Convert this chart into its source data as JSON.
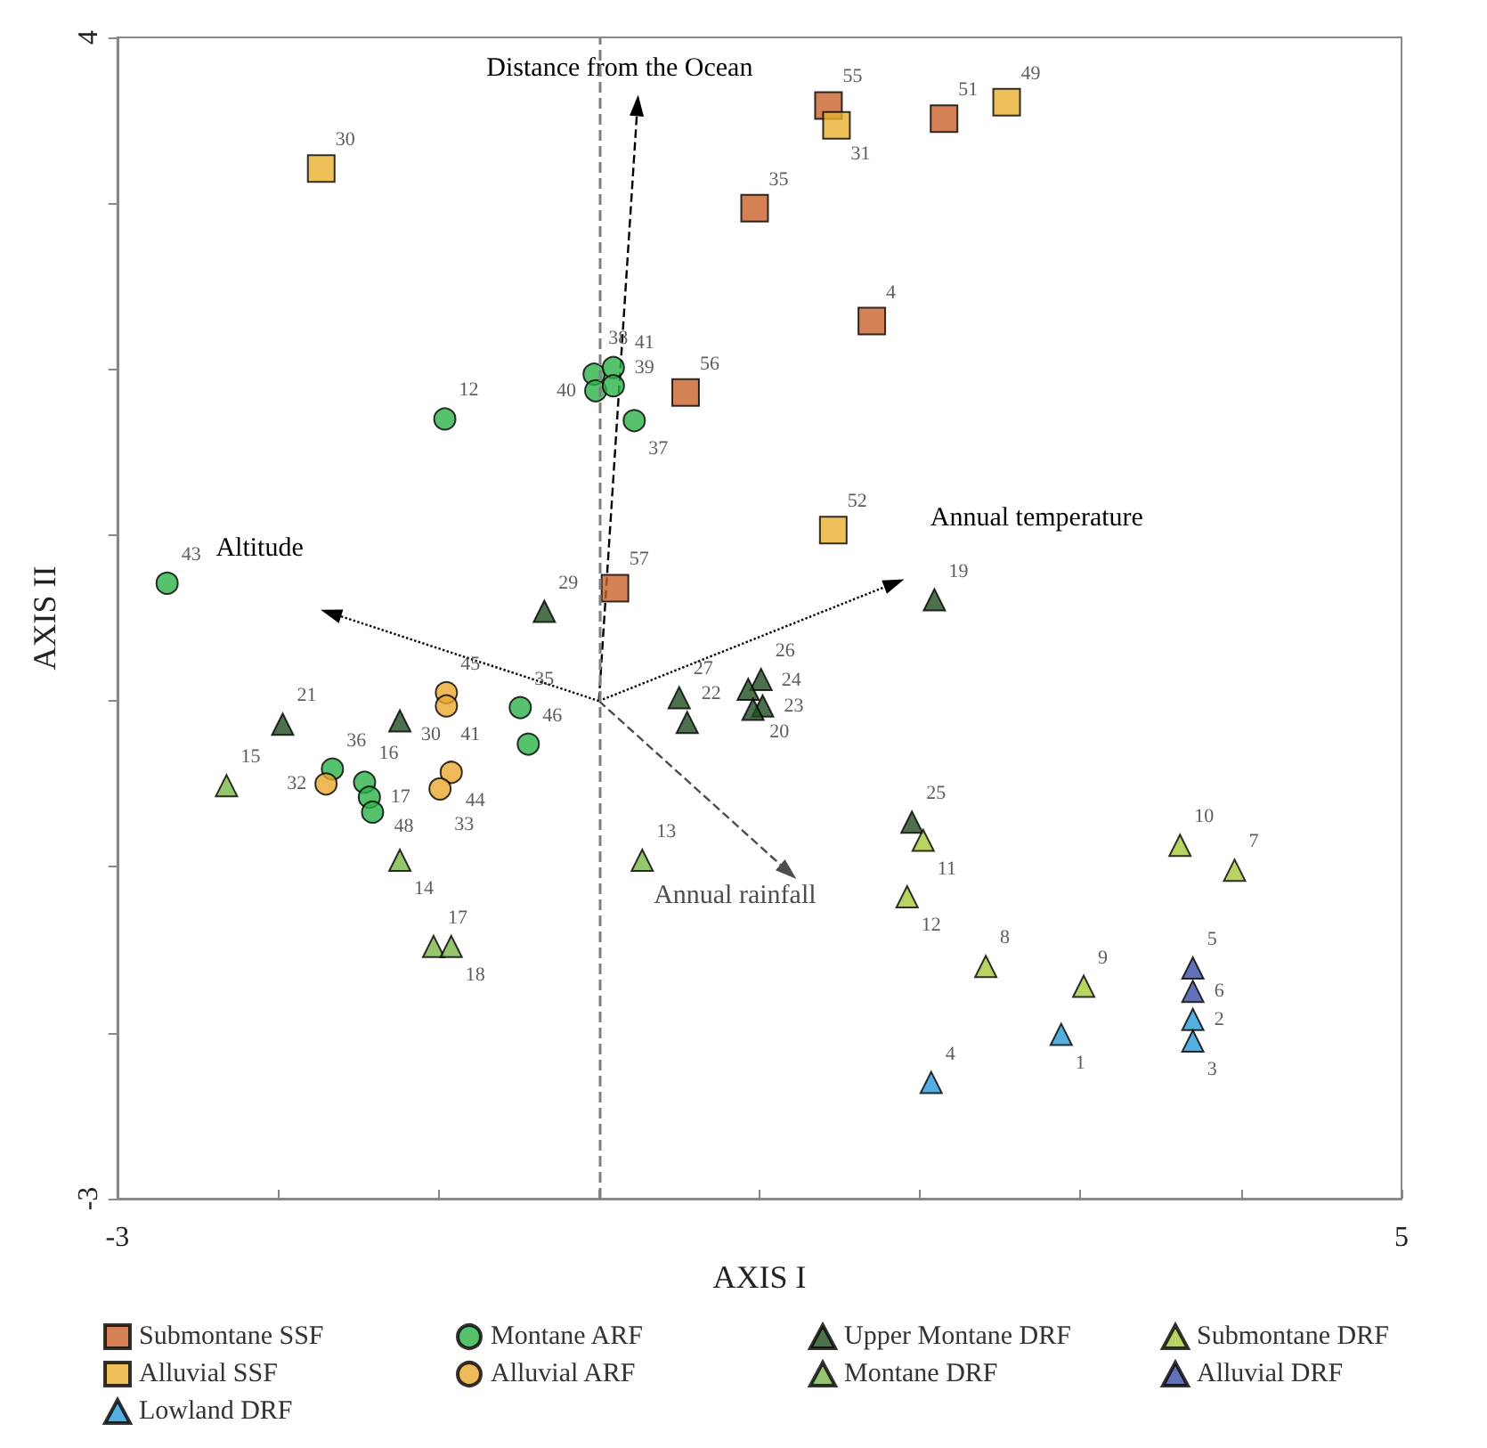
{
  "chart_data": {
    "type": "scatter",
    "xlabel": "AXIS I",
    "ylabel": "AXIS II",
    "xlim": [
      -3,
      5
    ],
    "ylim": [
      -3,
      4
    ],
    "xticks": [
      -3,
      {
        "value": -2,
        "label": null
      },
      {
        "value": -1,
        "label": null
      },
      {
        "value": 0,
        "label": null
      },
      {
        "value": 1,
        "label": null
      },
      {
        "value": 2,
        "label": null
      },
      {
        "value": 3,
        "label": null
      },
      {
        "value": 4,
        "label": null
      },
      5
    ],
    "yticks": [
      -3,
      {
        "value": -2,
        "label": null
      },
      {
        "value": -1,
        "label": null
      },
      {
        "value": 0,
        "label": null
      },
      {
        "value": 1,
        "label": null
      },
      {
        "value": 2,
        "label": null
      },
      {
        "value": 3,
        "label": null
      },
      4
    ],
    "legend": "bottom",
    "grid": false,
    "ref_lines": [
      {
        "axis": "x",
        "value": 0,
        "color": "#808080",
        "line_style": "dashed"
      }
    ],
    "series": [
      {
        "name": "Submontane SSF",
        "color": "#c8622a",
        "marker": "square",
        "x": [
          1.43,
          2.15,
          0.97,
          1.7,
          0.54,
          0.1
        ],
        "values": [
          3.59,
          3.51,
          2.97,
          2.29,
          1.86,
          0.68
        ]
      },
      {
        "name": "Montane ARF",
        "color": "#2db34a",
        "marker": "circle",
        "x": [
          -0.96,
          -2.69,
          -0.03,
          0.09,
          -0.02,
          0.09,
          0.22,
          -0.49,
          -0.44,
          -1.66,
          -1.46,
          -1.43,
          -1.41
        ],
        "values": [
          1.7,
          0.71,
          1.97,
          2.01,
          1.87,
          1.9,
          1.69,
          -0.04,
          -0.26,
          -0.41,
          -0.49,
          -0.58,
          -0.67
        ]
      },
      {
        "name": "Upper Montane DRF",
        "color": "#1f4d1f",
        "marker": "triangle",
        "x": [
          -0.34,
          -1.97,
          -1.24,
          0.5,
          0.55,
          1.01,
          0.93,
          1.02,
          0.96,
          2.09,
          1.95
        ],
        "values": [
          0.54,
          -0.14,
          -0.12,
          0.02,
          -0.13,
          0.13,
          0.07,
          -0.03,
          -0.05,
          0.61,
          -0.73
        ]
      },
      {
        "name": "Submontane DRF",
        "color": "#a8c83a",
        "marker": "triangle",
        "x": [
          2.02,
          3.62,
          3.96,
          1.92,
          2.41,
          3.02
        ],
        "values": [
          -0.84,
          -0.87,
          -1.02,
          -1.18,
          -1.6,
          -1.72
        ]
      },
      {
        "name": "Alluvial SSF",
        "color": "#e8b030",
        "marker": "square",
        "x": [
          -1.73,
          1.48,
          2.54,
          1.46
        ],
        "values": [
          3.21,
          3.47,
          3.61,
          1.03
        ]
      },
      {
        "name": "Alluvial ARF",
        "color": "#e8a830",
        "marker": "circle",
        "x": [
          -0.95,
          -0.95,
          -0.92,
          -0.99,
          -1.7
        ],
        "values": [
          0.05,
          -0.03,
          -0.43,
          -0.53,
          -0.5
        ]
      },
      {
        "name": "Montane DRF",
        "color": "#7ab648",
        "marker": "triangle",
        "x": [
          -2.32,
          -1.24,
          0.27,
          -1.03,
          -0.92
        ],
        "values": [
          -0.51,
          -0.96,
          -0.96,
          -1.48,
          -1.48
        ]
      },
      {
        "name": "Alluvial DRF",
        "color": "#3a4fa8",
        "marker": "triangle",
        "x": [
          3.7,
          3.7
        ],
        "values": [
          -1.61,
          -1.75
        ]
      },
      {
        "name": "Lowland DRF",
        "color": "#2a9ad8",
        "marker": "triangle",
        "x": [
          2.88,
          3.7,
          3.7,
          2.07
        ],
        "values": [
          -2.01,
          -1.92,
          -2.05,
          -2.3
        ]
      },
      {
        "name": "Distance from the Ocean",
        "type": "line",
        "color": "#000000",
        "line_style": "dashed",
        "marker": "triangle",
        "x": [
          0,
          0.24
        ],
        "values": [
          0,
          3.59
        ]
      },
      {
        "name": "Altitude",
        "type": "line",
        "color": "#000000",
        "line_style": "dotted",
        "marker": "triangle",
        "x": [
          0,
          -1.67
        ],
        "values": [
          0,
          0.53
        ]
      },
      {
        "name": "Annual temperature",
        "type": "line",
        "color": "#000000",
        "line_style": "dotted",
        "marker": "triangle",
        "x": [
          0,
          1.84
        ],
        "values": [
          0,
          0.71
        ]
      },
      {
        "name": "Annual rainfall",
        "type": "line",
        "color": "#4d4d4d",
        "line_style": "dashed",
        "marker": "triangle",
        "x": [
          0,
          1.18
        ],
        "values": [
          0,
          -1.03
        ]
      }
    ],
    "annotations": [
      {
        "text": "55",
        "x": 1.43,
        "y": 3.59
      },
      {
        "text": "51",
        "x": 2.15,
        "y": 3.51
      },
      {
        "text": "35",
        "x": 0.97,
        "y": 2.97
      },
      {
        "text": "4",
        "x": 1.7,
        "y": 2.29
      },
      {
        "text": "56",
        "x": 0.54,
        "y": 1.86
      },
      {
        "text": "57",
        "x": 0.1,
        "y": 0.68
      },
      {
        "text": "12",
        "x": -0.96,
        "y": 1.7
      },
      {
        "text": "43",
        "x": -2.69,
        "y": 0.71
      },
      {
        "text": "38",
        "x": -0.03,
        "y": 1.97
      },
      {
        "text": "39",
        "x": 0.09,
        "y": 2.01
      },
      {
        "text": "40",
        "x": -0.02,
        "y": 1.87
      },
      {
        "text": "41",
        "x": 0.09,
        "y": 1.9
      },
      {
        "text": "37",
        "x": 0.22,
        "y": 1.69
      },
      {
        "text": "35",
        "x": -0.49,
        "y": -0.04
      },
      {
        "text": "46",
        "x": -0.44,
        "y": -0.26
      },
      {
        "text": "36",
        "x": -1.66,
        "y": -0.41
      },
      {
        "text": "16",
        "x": -1.46,
        "y": -0.49
      },
      {
        "text": "17",
        "x": -1.43,
        "y": -0.58
      },
      {
        "text": "48",
        "x": -1.41,
        "y": -0.67
      },
      {
        "text": "29",
        "x": -0.34,
        "y": 0.54
      },
      {
        "text": "21",
        "x": -1.97,
        "y": -0.14
      },
      {
        "text": "30",
        "x": -1.24,
        "y": -0.12
      },
      {
        "text": "27",
        "x": 0.5,
        "y": 0.02
      },
      {
        "text": "22",
        "x": 0.55,
        "y": -0.13
      },
      {
        "text": "26",
        "x": 1.01,
        "y": 0.13
      },
      {
        "text": "20",
        "x": 0.93,
        "y": 0.07
      },
      {
        "text": "23",
        "x": 1.02,
        "y": -0.03
      },
      {
        "text": "24",
        "x": 0.96,
        "y": -0.05
      },
      {
        "text": "19",
        "x": 2.09,
        "y": 0.61
      },
      {
        "text": "25",
        "x": 1.95,
        "y": -0.73
      },
      {
        "text": "11",
        "x": 2.02,
        "y": -0.84
      },
      {
        "text": "10",
        "x": 3.62,
        "y": -0.87
      },
      {
        "text": "7",
        "x": 3.96,
        "y": -1.02
      },
      {
        "text": "12",
        "x": 1.92,
        "y": -1.18
      },
      {
        "text": "8",
        "x": 2.41,
        "y": -1.6
      },
      {
        "text": "9",
        "x": 3.02,
        "y": -1.72
      },
      {
        "text": "30",
        "x": -1.73,
        "y": 3.21
      },
      {
        "text": "31",
        "x": 1.48,
        "y": 3.47
      },
      {
        "text": "49",
        "x": 2.54,
        "y": 3.61
      },
      {
        "text": "52",
        "x": 1.46,
        "y": 1.03
      },
      {
        "text": "45",
        "x": -0.95,
        "y": 0.05
      },
      {
        "text": "41",
        "x": -0.95,
        "y": -0.03
      },
      {
        "text": "44",
        "x": -0.92,
        "y": -0.43
      },
      {
        "text": "33",
        "x": -0.99,
        "y": -0.53
      },
      {
        "text": "32",
        "x": -1.7,
        "y": -0.5
      },
      {
        "text": "15",
        "x": -2.32,
        "y": -0.51
      },
      {
        "text": "14",
        "x": -1.24,
        "y": -0.96
      },
      {
        "text": "13",
        "x": 0.27,
        "y": -0.96
      },
      {
        "text": "17",
        "x": -1.03,
        "y": -1.48
      },
      {
        "text": "18",
        "x": -0.92,
        "y": -1.48
      },
      {
        "text": "5",
        "x": 3.7,
        "y": -1.61
      },
      {
        "text": "6",
        "x": 3.7,
        "y": -1.75
      },
      {
        "text": "1",
        "x": 2.88,
        "y": -2.01
      },
      {
        "text": "2",
        "x": 3.7,
        "y": -1.92
      },
      {
        "text": "3",
        "x": 3.7,
        "y": -2.05
      },
      {
        "text": "4",
        "x": 2.07,
        "y": -2.3
      }
    ]
  }
}
